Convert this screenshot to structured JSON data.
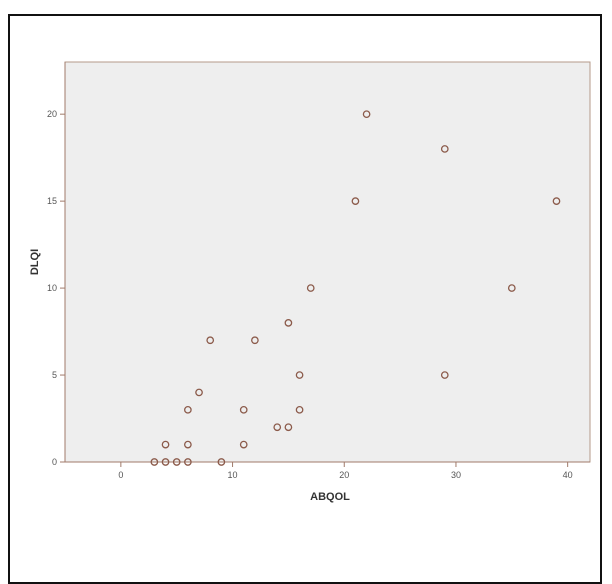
{
  "chart_data": {
    "type": "scatter",
    "title": "",
    "xlabel": "ABQOL",
    "ylabel": "DLQI",
    "xlim": [
      -5,
      42
    ],
    "ylim": [
      0,
      23
    ],
    "xticks": [
      0,
      10,
      20,
      30,
      40
    ],
    "yticks": [
      0,
      5,
      10,
      15,
      20
    ],
    "grid": false,
    "legend": "none",
    "colors": {
      "plot_bg": "#eeeeee",
      "marker": "#8b5a4a",
      "axis": "#a07a6a"
    },
    "points": [
      {
        "x": 3,
        "y": 0
      },
      {
        "x": 4,
        "y": 0
      },
      {
        "x": 5,
        "y": 0
      },
      {
        "x": 6,
        "y": 0
      },
      {
        "x": 9,
        "y": 0
      },
      {
        "x": 4,
        "y": 1
      },
      {
        "x": 6,
        "y": 1
      },
      {
        "x": 11,
        "y": 1
      },
      {
        "x": 14,
        "y": 2
      },
      {
        "x": 15,
        "y": 2
      },
      {
        "x": 6,
        "y": 3
      },
      {
        "x": 11,
        "y": 3
      },
      {
        "x": 16,
        "y": 3
      },
      {
        "x": 7,
        "y": 4
      },
      {
        "x": 16,
        "y": 5
      },
      {
        "x": 29,
        "y": 5
      },
      {
        "x": 8,
        "y": 7
      },
      {
        "x": 12,
        "y": 7
      },
      {
        "x": 15,
        "y": 8
      },
      {
        "x": 17,
        "y": 10
      },
      {
        "x": 35,
        "y": 10
      },
      {
        "x": 21,
        "y": 15
      },
      {
        "x": 39,
        "y": 15
      },
      {
        "x": 29,
        "y": 18
      },
      {
        "x": 22,
        "y": 20
      }
    ]
  }
}
